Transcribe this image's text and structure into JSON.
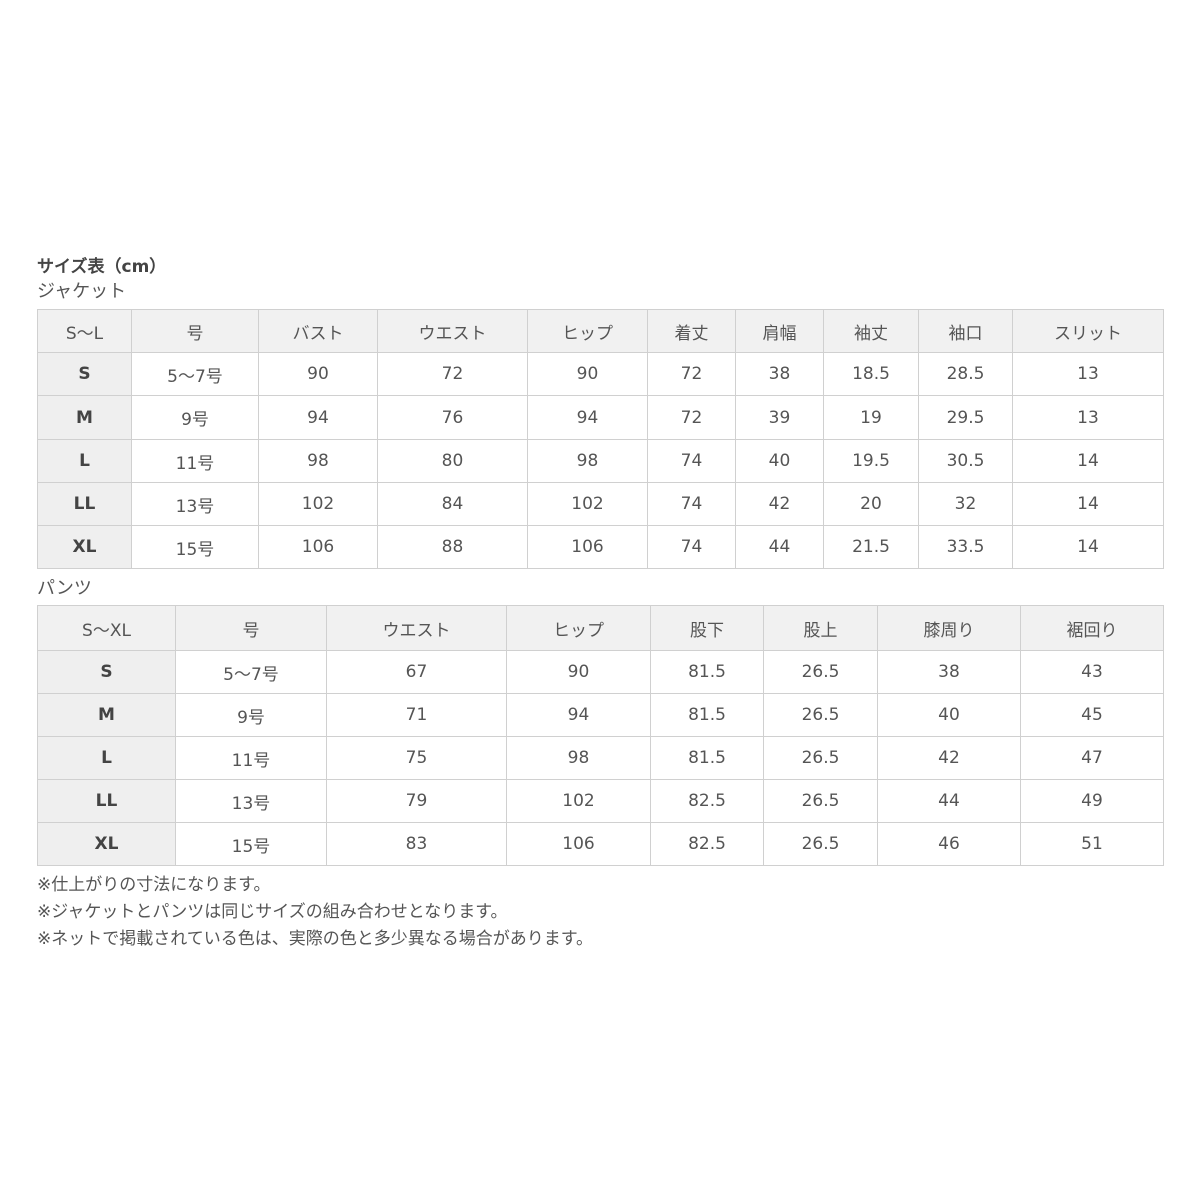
{
  "title": "サイズ表（cm）",
  "jacket": {
    "label": "ジャケット",
    "headers": [
      "S～L",
      "号",
      "バスト",
      "ウエスト",
      "ヒップ",
      "着丈",
      "肩幅",
      "袖丈",
      "袖口",
      "スリット"
    ],
    "rows": [
      [
        "S",
        "5～7号",
        "90",
        "72",
        "90",
        "72",
        "38",
        "18.5",
        "28.5",
        "13"
      ],
      [
        "M",
        "9号",
        "94",
        "76",
        "94",
        "72",
        "39",
        "19",
        "29.5",
        "13"
      ],
      [
        "L",
        "11号",
        "98",
        "80",
        "98",
        "74",
        "40",
        "19.5",
        "30.5",
        "14"
      ],
      [
        "LL",
        "13号",
        "102",
        "84",
        "102",
        "74",
        "42",
        "20",
        "32",
        "14"
      ],
      [
        "XL",
        "15号",
        "106",
        "88",
        "106",
        "74",
        "44",
        "21.5",
        "33.5",
        "14"
      ]
    ]
  },
  "pants": {
    "label": "パンツ",
    "headers": [
      "S～XL",
      "号",
      "ウエスト",
      "ヒップ",
      "股下",
      "股上",
      "膝周り",
      "裾回り"
    ],
    "rows": [
      [
        "S",
        "5～7号",
        "67",
        "90",
        "81.5",
        "26.5",
        "38",
        "43"
      ],
      [
        "M",
        "9号",
        "71",
        "94",
        "81.5",
        "26.5",
        "40",
        "45"
      ],
      [
        "L",
        "11号",
        "75",
        "98",
        "81.5",
        "26.5",
        "42",
        "47"
      ],
      [
        "LL",
        "13号",
        "79",
        "102",
        "82.5",
        "26.5",
        "44",
        "49"
      ],
      [
        "XL",
        "15号",
        "83",
        "106",
        "82.5",
        "26.5",
        "46",
        "51"
      ]
    ]
  },
  "notes": [
    "※仕上がりの寸法になります。",
    "※ジャケットとパンツは同じサイズの組み合わせとなります。",
    "※ネットで掲載されている色は、実際の色と多少異なる場合があります。"
  ]
}
